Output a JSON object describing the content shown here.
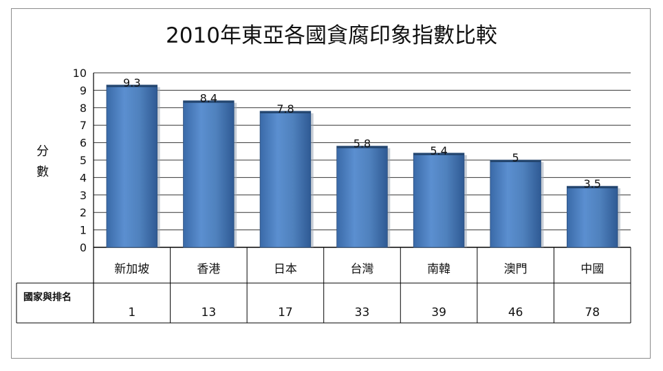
{
  "chart_data": {
    "type": "bar",
    "title": "2010年東亞各國貪腐印象指數比較",
    "ylabel": "分數",
    "row_label": "國家與排名",
    "categories": [
      "新加坡",
      "香港",
      "日本",
      "台灣",
      "南韓",
      "澳門",
      "中國"
    ],
    "ranks": [
      "1",
      "13",
      "17",
      "33",
      "39",
      "46",
      "78"
    ],
    "values": [
      9.3,
      8.4,
      7.8,
      5.8,
      5.4,
      5,
      3.5
    ],
    "data_labels": [
      "9.3",
      "8.4",
      "7.8",
      "5.8",
      "5.4",
      "5",
      "3.5"
    ],
    "ylim": [
      0,
      10
    ],
    "yticks": [
      "0",
      "1",
      "2",
      "3",
      "4",
      "5",
      "6",
      "7",
      "8",
      "9",
      "10"
    ],
    "grid": true,
    "bar_color": "#4f81bd"
  }
}
